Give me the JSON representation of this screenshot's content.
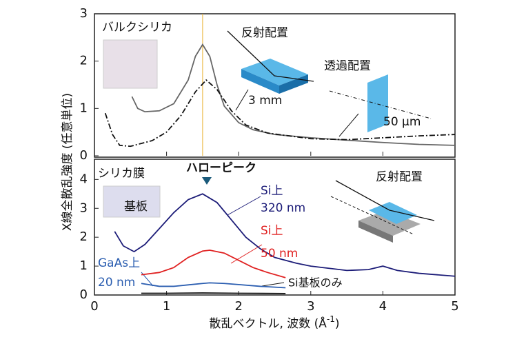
{
  "chart_data": [
    {
      "type": "line",
      "ylim": [
        0,
        3
      ],
      "yticks": [
        0,
        1,
        2,
        3
      ],
      "xlim": [
        0,
        5
      ],
      "xticks": [
        0,
        1,
        2,
        3,
        4,
        5
      ],
      "ylabel": "X線全散乱強度 (任意単位)",
      "vline": {
        "x": 1.5,
        "color": "#e8b030"
      },
      "annotations": [
        "バルクシリカ",
        "反射配置",
        "3 mm",
        "透過配置",
        "50 μm"
      ],
      "series": [
        {
          "color": "#666666",
          "style": "solid",
          "x": [
            0.52,
            0.6,
            0.7,
            0.9,
            1.1,
            1.3,
            1.4,
            1.5,
            1.6,
            1.7,
            1.8,
            2.0,
            2.2,
            2.5,
            3.0,
            3.5,
            4.0,
            4.5,
            5.0
          ],
          "values": [
            1.25,
            1.0,
            0.93,
            0.95,
            1.1,
            1.6,
            2.1,
            2.35,
            2.1,
            1.5,
            1.05,
            0.7,
            0.55,
            0.45,
            0.38,
            0.33,
            0.28,
            0.24,
            0.22
          ]
        },
        {
          "color": "#111111",
          "style": "dashdot",
          "x": [
            0.15,
            0.25,
            0.35,
            0.5,
            0.8,
            1.0,
            1.2,
            1.4,
            1.55,
            1.7,
            1.9,
            2.1,
            2.4,
            3.0,
            3.5,
            4.0,
            4.5,
            5.0
          ],
          "values": [
            0.9,
            0.45,
            0.22,
            0.2,
            0.32,
            0.5,
            0.85,
            1.35,
            1.6,
            1.4,
            0.95,
            0.65,
            0.48,
            0.36,
            0.34,
            0.38,
            0.42,
            0.45
          ]
        }
      ]
    },
    {
      "type": "line",
      "ylim": [
        0,
        4.7
      ],
      "yticks": [
        0,
        1,
        2,
        3,
        4
      ],
      "xlim": [
        0,
        5
      ],
      "xticks": [
        0,
        1,
        2,
        3,
        4,
        5
      ],
      "xlabel": "散乱ベクトル, 波数 (Å",
      "xlabel_sup": "-1",
      "xlabel_end": ")",
      "annotations": [
        "シリカ膜",
        "基板",
        "ハローピーク",
        "反射配置",
        "Si基板のみ"
      ],
      "series": [
        {
          "color": "#1c1c78",
          "label": [
            "Si上",
            "320 nm"
          ],
          "x": [
            0.28,
            0.4,
            0.55,
            0.7,
            0.9,
            1.1,
            1.3,
            1.5,
            1.7,
            1.9,
            2.1,
            2.3,
            2.5,
            2.8,
            3.0,
            3.5,
            3.8,
            4.0,
            4.2,
            4.5,
            5.0
          ],
          "values": [
            2.2,
            1.7,
            1.5,
            1.75,
            2.3,
            2.85,
            3.3,
            3.5,
            3.2,
            2.6,
            2.0,
            1.6,
            1.3,
            1.1,
            1.0,
            0.85,
            0.88,
            1.0,
            0.85,
            0.75,
            0.65
          ]
        },
        {
          "color": "#e02020",
          "label": [
            "Si上",
            "50 nm"
          ],
          "x": [
            0.65,
            0.9,
            1.1,
            1.3,
            1.5,
            1.6,
            1.8,
            2.0,
            2.2,
            2.4,
            2.65
          ],
          "values": [
            0.7,
            0.78,
            0.95,
            1.3,
            1.52,
            1.55,
            1.45,
            1.2,
            0.95,
            0.78,
            0.6
          ]
        },
        {
          "color": "#2a5db0",
          "label": [
            "GaAs上",
            "20 nm"
          ],
          "x": [
            0.65,
            0.9,
            1.1,
            1.3,
            1.5,
            1.6,
            1.8,
            2.0,
            2.3,
            2.65
          ],
          "values": [
            0.4,
            0.3,
            0.3,
            0.35,
            0.4,
            0.42,
            0.4,
            0.36,
            0.3,
            0.25
          ]
        },
        {
          "color": "#111111",
          "x": [
            0.65,
            1.0,
            1.5,
            2.0,
            2.65
          ],
          "values": [
            0.06,
            0.06,
            0.07,
            0.06,
            0.05
          ]
        }
      ]
    }
  ]
}
